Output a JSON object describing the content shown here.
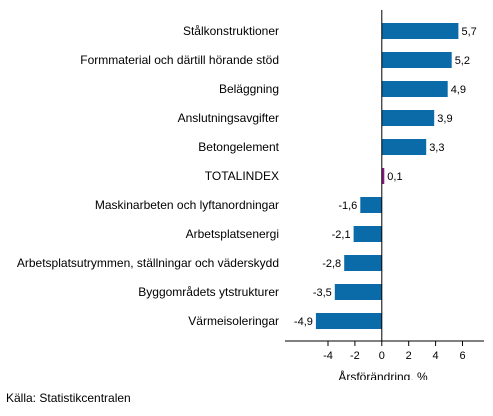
{
  "chart_data": {
    "type": "bar",
    "orientation": "horizontal",
    "categories": [
      "Stålkonstruktioner",
      "Formmaterial och därtill hörande stöd",
      "Beläggning",
      "Anslutningsavgifter",
      "Betongelement",
      "TOTALINDEX",
      "Maskinarbeten och lyftanordningar",
      "Arbetsplatsenergi",
      "Arbetsplatsutrymmen, ställningar och väderskydd",
      "Byggområdets ytstrukturer",
      "Värmeisoleringar"
    ],
    "values": [
      5.7,
      5.2,
      4.9,
      3.9,
      3.3,
      0.1,
      -1.6,
      -2.1,
      -2.8,
      -3.5,
      -4.9
    ],
    "value_labels": [
      "5,7",
      "5,2",
      "4,9",
      "3,9",
      "3,3",
      "0,1",
      "-1,6",
      "-2,1",
      "-2,8",
      "-3,5",
      "-4,9"
    ],
    "xlabel": "Årsförändring, %",
    "xlim": [
      -7.2,
      7.6
    ],
    "xticks": [
      -4,
      -2,
      0,
      2,
      4,
      6
    ],
    "xtick_labels": [
      "-4",
      "-2",
      "0",
      "2",
      "4",
      "6"
    ],
    "colors": {
      "bar": "#0b6ba8",
      "highlight": "#8b1d82",
      "axis": "#000000"
    },
    "highlight_category": "TOTALINDEX"
  },
  "source": "Källa: Statistikcentralen"
}
